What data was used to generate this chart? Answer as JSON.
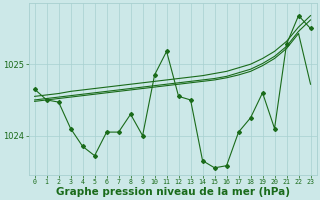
{
  "hours": [
    0,
    1,
    2,
    3,
    4,
    5,
    6,
    7,
    8,
    9,
    10,
    11,
    12,
    13,
    14,
    15,
    16,
    17,
    18,
    19,
    20,
    21,
    22,
    23
  ],
  "pressure_detail": [
    1024.65,
    1024.5,
    1024.47,
    1024.1,
    1023.85,
    1023.72,
    1024.05,
    1024.05,
    1024.3,
    1024.0,
    1024.85,
    1025.18,
    1024.55,
    1024.5,
    1023.65,
    1023.55,
    1023.58,
    1024.05,
    1024.25,
    1024.6,
    1024.1,
    1025.28,
    1025.68,
    1025.5
  ],
  "pressure_linear1": [
    1024.55,
    1024.57,
    1024.59,
    1024.62,
    1024.64,
    1024.66,
    1024.68,
    1024.7,
    1024.72,
    1024.74,
    1024.76,
    1024.78,
    1024.8,
    1024.82,
    1024.84,
    1024.87,
    1024.9,
    1024.95,
    1025.0,
    1025.08,
    1025.18,
    1025.32,
    1025.52,
    1025.68
  ],
  "pressure_linear2": [
    1024.5,
    1024.52,
    1024.54,
    1024.56,
    1024.58,
    1024.6,
    1024.62,
    1024.64,
    1024.66,
    1024.68,
    1024.7,
    1024.72,
    1024.74,
    1024.76,
    1024.78,
    1024.8,
    1024.83,
    1024.88,
    1024.93,
    1025.01,
    1025.11,
    1025.25,
    1025.46,
    1025.62
  ],
  "pressure_linear3": [
    1024.48,
    1024.5,
    1024.52,
    1024.54,
    1024.56,
    1024.58,
    1024.6,
    1024.62,
    1024.64,
    1024.66,
    1024.68,
    1024.7,
    1024.72,
    1024.74,
    1024.76,
    1024.78,
    1024.81,
    1024.85,
    1024.9,
    1024.98,
    1025.08,
    1025.22,
    1025.43,
    1024.72
  ],
  "line_color": "#1a6b1a",
  "bg_color": "#cce8e8",
  "grid_color": "#a8d0d0",
  "tick_color": "#1a6b1a",
  "xlabel": "Graphe pression niveau de la mer (hPa)",
  "ylim_min": 1023.45,
  "ylim_max": 1025.85,
  "yticks": [
    1024,
    1025
  ],
  "xlabel_fontsize": 7.5
}
